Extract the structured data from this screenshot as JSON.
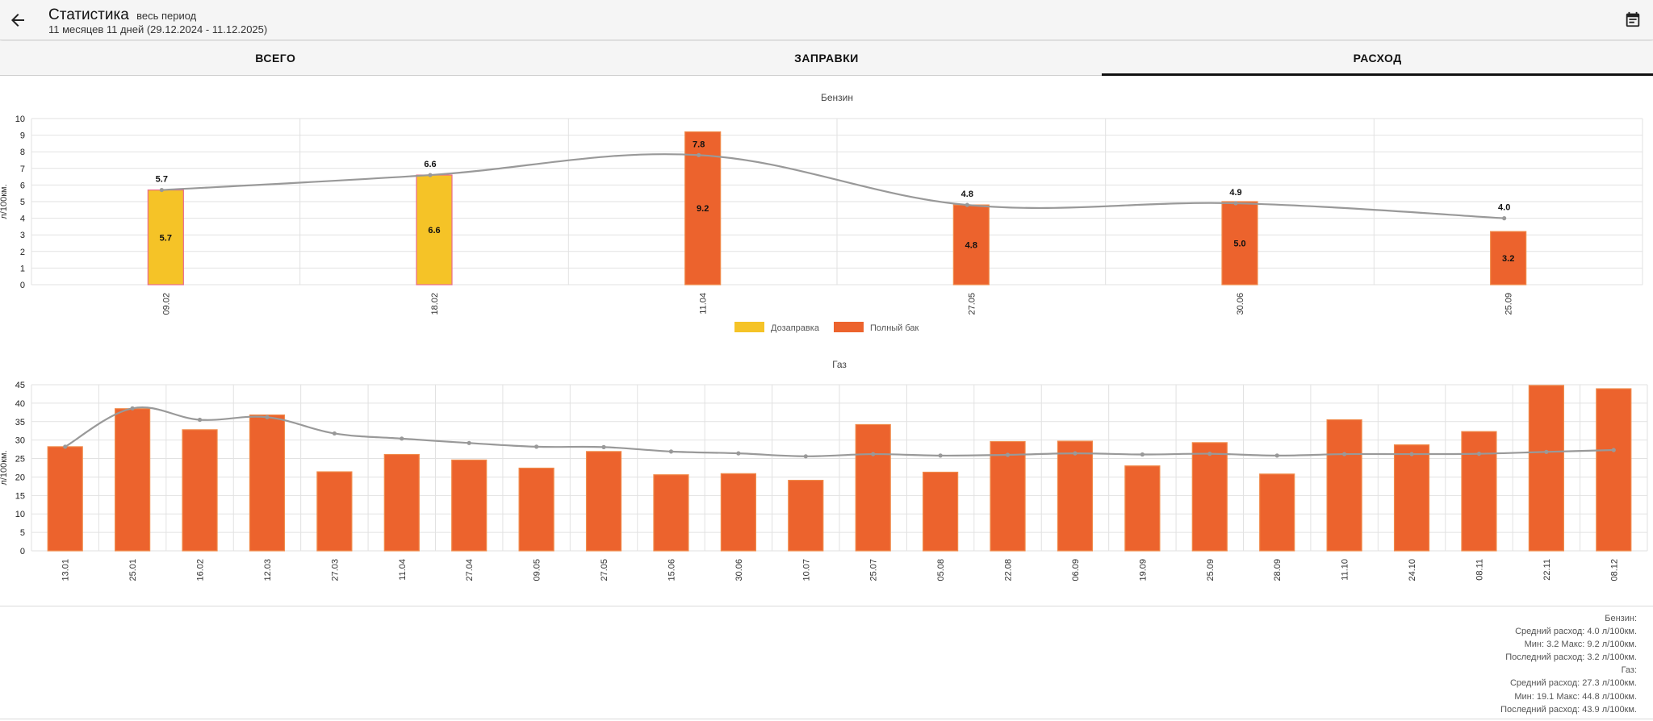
{
  "header": {
    "title": "Статистика",
    "period": "весь период",
    "subtitle": "11 месяцев 11 дней (29.12.2024 - 11.12.2025)",
    "back_icon": "arrow-back-icon",
    "calendar_icon": "calendar-icon"
  },
  "tabs": [
    {
      "label": "ВСЕГО",
      "active": false
    },
    {
      "label": "ЗАПРАВКИ",
      "active": false
    },
    {
      "label": "РАСХОД",
      "active": true
    }
  ],
  "colors": {
    "refill": "#f5c327",
    "full_tank": "#ec632d",
    "line": "#999999",
    "grid": "#e2e2e2"
  },
  "chart_data": [
    {
      "type": "bar",
      "title": "Бензин",
      "ylabel": "л/100км.",
      "ylim": [
        0,
        10
      ],
      "yticks": [
        0,
        1,
        2,
        3,
        4,
        5,
        6,
        7,
        8,
        9,
        10
      ],
      "categories": [
        "09.02",
        "18.02",
        "11.04",
        "27.05",
        "30.06",
        "25.09"
      ],
      "bar_types": [
        "refill",
        "refill",
        "full",
        "full",
        "full",
        "full"
      ],
      "bar_values": [
        5.7,
        6.6,
        9.2,
        4.8,
        5.0,
        3.2
      ],
      "line_values": [
        5.7,
        6.6,
        7.8,
        4.8,
        4.9,
        4.0
      ],
      "legend": [
        {
          "label": "Дозаправка",
          "color": "#f5c327"
        },
        {
          "label": "Полный бак",
          "color": "#ec632d"
        }
      ],
      "grid": true
    },
    {
      "type": "bar",
      "title": "Газ",
      "ylabel": "л/100км.",
      "ylim": [
        0,
        45
      ],
      "yticks": [
        0,
        5,
        10,
        15,
        20,
        25,
        30,
        35,
        40,
        45
      ],
      "categories": [
        "13.01",
        "25.01",
        "16.02",
        "12.03",
        "27.03",
        "11.04",
        "27.04",
        "09.05",
        "27.05",
        "15.06",
        "30.06",
        "10.07",
        "25.07",
        "05.08",
        "22.08",
        "06.09",
        "19.09",
        "25.09",
        "28.09",
        "11.10",
        "24.10",
        "08.11",
        "22.11",
        "08.12"
      ],
      "bar_values": [
        28.2,
        38.5,
        32.8,
        36.8,
        21.4,
        26.1,
        24.6,
        22.4,
        26.9,
        20.6,
        20.9,
        19.1,
        34.2,
        21.3,
        29.6,
        29.7,
        23.0,
        29.3,
        20.8,
        35.5,
        28.7,
        32.3,
        44.8,
        43.9
      ],
      "line_values": [
        28.2,
        38.6,
        35.5,
        36.2,
        31.8,
        30.4,
        29.2,
        28.2,
        28.1,
        26.9,
        26.4,
        25.6,
        26.2,
        25.8,
        26.0,
        26.4,
        26.1,
        26.3,
        25.8,
        26.2,
        26.2,
        26.3,
        26.8,
        27.3
      ],
      "grid": true
    }
  ],
  "summary": [
    "Бензин:",
    "Средний расход: 4.0 л/100км.",
    "Мин: 3.2 Макс: 9.2 л/100км.",
    "Последний расход: 3.2 л/100км.",
    "Газ:",
    "Средний расход: 27.3 л/100км.",
    "Мин: 19.1 Макс: 44.8 л/100км.",
    "Последний расход: 43.9 л/100км."
  ]
}
